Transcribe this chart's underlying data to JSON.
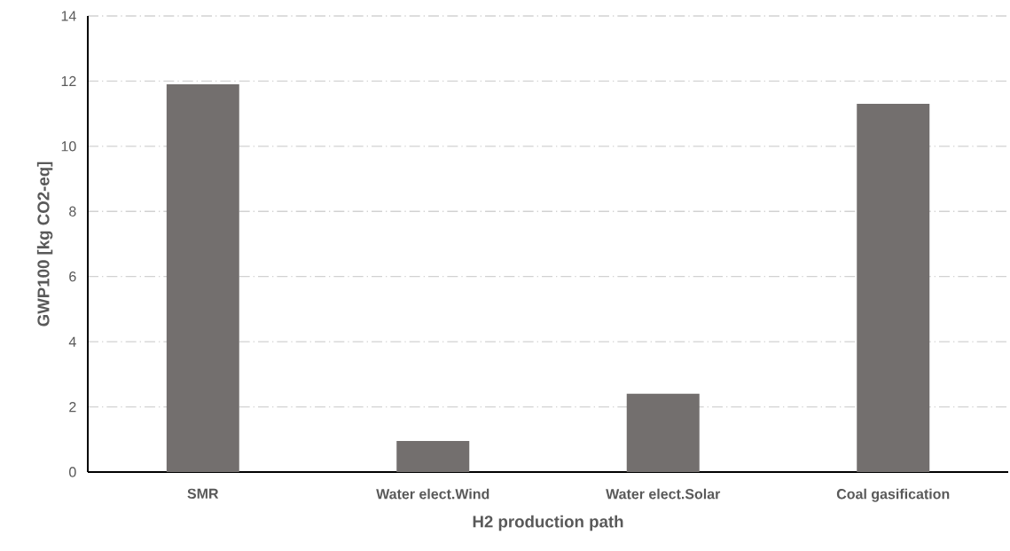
{
  "chart_data": {
    "type": "bar",
    "xlabel": "H2 production path",
    "ylabel": "GWP100 [kg CO2-eq]",
    "categories": [
      "SMR",
      "Water elect.Wind",
      "Water elect.Solar",
      "Coal gasification"
    ],
    "values": [
      11.9,
      0.95,
      2.4,
      11.3
    ],
    "color": "#736f6e",
    "ylim": [
      0,
      14
    ],
    "yticks": [
      0,
      2,
      4,
      6,
      8,
      10,
      12,
      14
    ],
    "grid": "y"
  }
}
